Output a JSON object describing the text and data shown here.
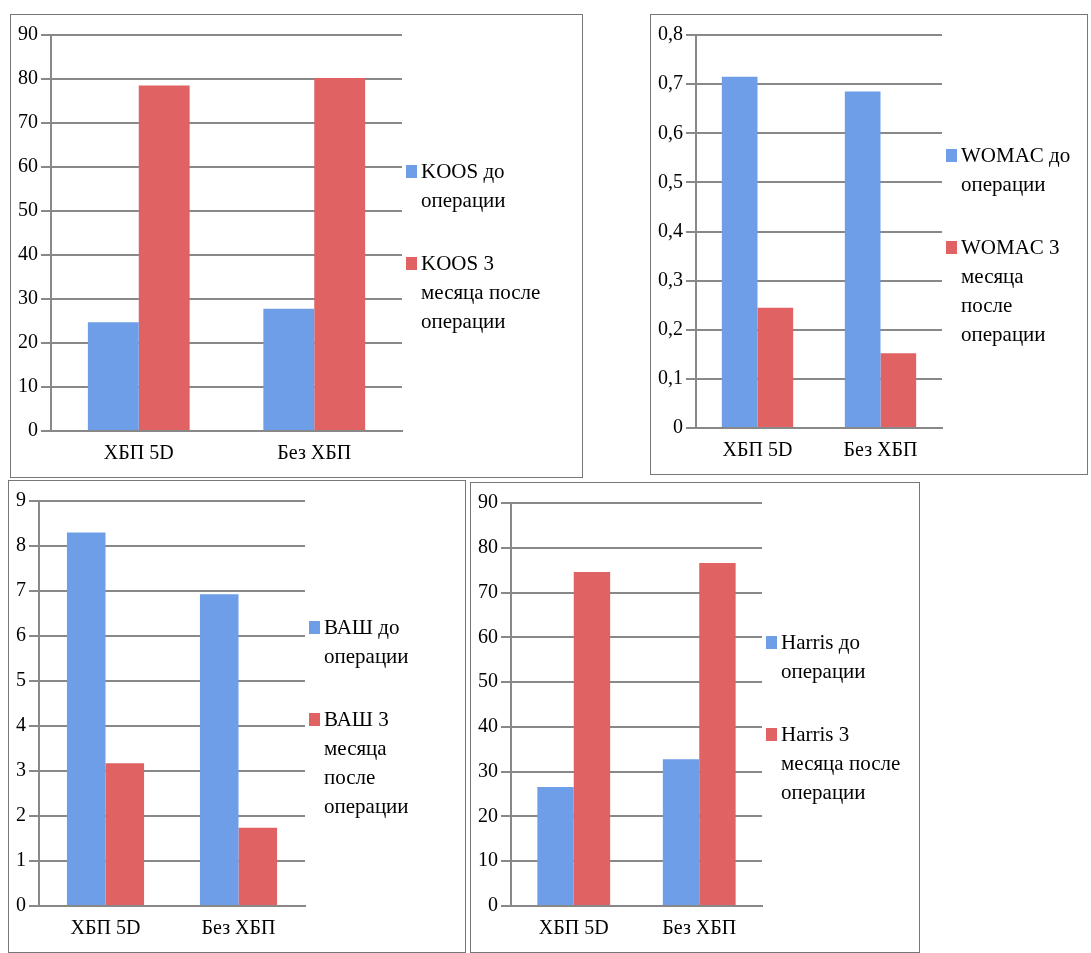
{
  "chart_data": [
    {
      "type": "bar",
      "categories": [
        "ХБП 5D",
        "Без ХБП"
      ],
      "series": [
        {
          "name": "KOOS до операции",
          "color": "#6f9ee8",
          "values": [
            24.7,
            27.8
          ]
        },
        {
          "name": "KOOS 3 месяца после операции",
          "color": "#e06262",
          "values": [
            78.5,
            80.2
          ]
        }
      ],
      "ylim": [
        0,
        90
      ],
      "yticks": [
        0,
        10,
        20,
        30,
        40,
        50,
        60,
        70,
        80,
        90
      ],
      "grid": "y",
      "legend": "right"
    },
    {
      "type": "bar",
      "categories": [
        "ХБП 5D",
        "Без ХБП"
      ],
      "series": [
        {
          "name": "WOMAC до операции",
          "color": "#6f9ee8",
          "values": [
            0.715,
            0.685
          ]
        },
        {
          "name": "WOMAC 3 месяца после операции",
          "color": "#e06262",
          "values": [
            0.245,
            0.152
          ]
        }
      ],
      "ylim": [
        0,
        0.8
      ],
      "yticks": [
        0,
        {
          "value": 0.1,
          "label": "0,1"
        },
        {
          "value": 0.2,
          "label": "0,2"
        },
        {
          "value": 0.3,
          "label": "0,3"
        },
        {
          "value": 0.4,
          "label": "0,4"
        },
        {
          "value": 0.5,
          "label": "0,5"
        },
        {
          "value": 0.6,
          "label": "0,6"
        },
        {
          "value": 0.7,
          "label": "0,7"
        },
        {
          "value": 0.8,
          "label": "0,8"
        }
      ],
      "grid": "y",
      "legend": "right"
    },
    {
      "type": "bar",
      "categories": [
        "ХБП 5D",
        "Без ХБП"
      ],
      "series": [
        {
          "name": "ВАШ до операции",
          "color": "#6f9ee8",
          "values": [
            8.3,
            6.93
          ]
        },
        {
          "name": "ВАШ 3 месяца после операции",
          "color": "#e06262",
          "values": [
            3.17,
            1.74
          ]
        }
      ],
      "ylim": [
        0,
        9
      ],
      "yticks": [
        0,
        1,
        2,
        3,
        4,
        5,
        6,
        7,
        8,
        9
      ],
      "grid": "y",
      "legend": "right"
    },
    {
      "type": "bar",
      "categories": [
        "ХБП 5D",
        "Без ХБП"
      ],
      "series": [
        {
          "name": "Harris до операции",
          "color": "#6f9ee8",
          "values": [
            26.6,
            32.8
          ]
        },
        {
          "name": "Harris 3 месяца после операции",
          "color": "#e06262",
          "values": [
            74.6,
            76.6
          ]
        }
      ],
      "ylim": [
        0,
        90
      ],
      "yticks": [
        0,
        10,
        20,
        30,
        40,
        50,
        60,
        70,
        80,
        90
      ],
      "grid": "y",
      "legend": "right"
    }
  ]
}
